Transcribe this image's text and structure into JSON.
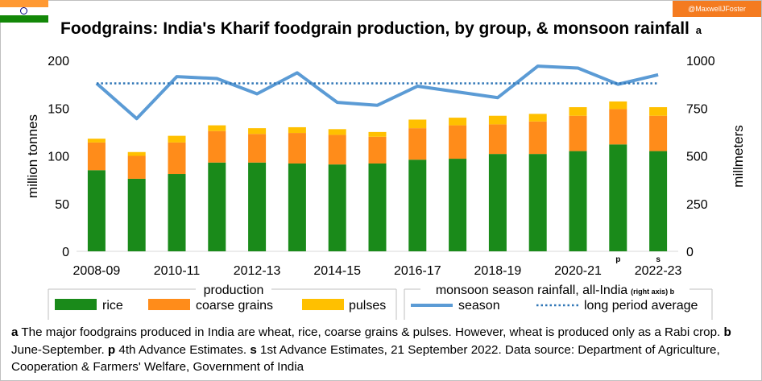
{
  "credit": "@MaxwellJFoster",
  "title": "Foodgrains: India's Kharif foodgrain production, by group, & monsoon rainfall",
  "title_note": "a",
  "colors": {
    "rice": "#1a8a1a",
    "coarse_grains": "#ff8c1a",
    "pulses": "#ffc000",
    "season": "#5b9bd5",
    "long_period_average": "#2e75b6",
    "credit_bg": "#f47b20",
    "flag_saffron": "#ff9933",
    "flag_green": "#138808",
    "flag_chakra": "#000080"
  },
  "flag_icon": "india-flag-icon",
  "chart_data": {
    "type": "bar",
    "stacked": true,
    "categories": [
      "2008-09",
      "2009-10",
      "2010-11",
      "2011-12",
      "2012-13",
      "2013-14",
      "2014-15",
      "2015-16",
      "2016-17",
      "2017-18",
      "2018-19",
      "2019-20",
      "2020-21",
      "2021-22",
      "2022-23"
    ],
    "x_tick_labels": [
      "2008-09",
      "2010-11",
      "2012-13",
      "2014-15",
      "2016-17",
      "2018-19",
      "2020-21",
      "2022-23"
    ],
    "category_notes": {
      "2021-22": "p",
      "2022-23": "s"
    },
    "series": [
      {
        "name": "rice",
        "axis": "left",
        "values": [
          85,
          76,
          81,
          93,
          93,
          92,
          91,
          92,
          96,
          97,
          102,
          102,
          105,
          112,
          105
        ]
      },
      {
        "name": "coarse grains",
        "axis": "left",
        "values": [
          29,
          24,
          33,
          33,
          30,
          32,
          31,
          28,
          33,
          35,
          31,
          34,
          37,
          37,
          37
        ]
      },
      {
        "name": "pulses",
        "axis": "left",
        "values": [
          4,
          4,
          7,
          6,
          6,
          6,
          6,
          5,
          9,
          8,
          9,
          8,
          9,
          8,
          9
        ]
      }
    ],
    "line_series": [
      {
        "name": "season",
        "axis": "right",
        "style": "solid",
        "values": [
          880,
          695,
          915,
          905,
          825,
          935,
          780,
          765,
          865,
          835,
          805,
          970,
          960,
          875,
          925
        ]
      },
      {
        "name": "long period average",
        "axis": "right",
        "style": "dotted",
        "values": [
          880,
          880,
          880,
          880,
          880,
          880,
          880,
          880,
          880,
          880,
          880,
          880,
          880,
          880,
          880
        ]
      }
    ],
    "ylabel": "million tonnes",
    "ylim": [
      0,
      200
    ],
    "yticks": [
      0,
      50,
      100,
      150,
      200
    ],
    "y2label": "millmeters",
    "y2lim": [
      0,
      1000
    ],
    "y2ticks": [
      0,
      250,
      500,
      750,
      1000
    ],
    "grid": false
  },
  "legend": {
    "production_title": "production",
    "production_items": [
      "rice",
      "coarse grains",
      "pulses"
    ],
    "rainfall_title": "monsoon season rainfall, all-India",
    "rainfall_title_note": "(right axis) b",
    "rainfall_items": [
      "season",
      "long period average"
    ]
  },
  "footnote": {
    "a_key": "a",
    "a_text": " The major foodgrains produced in India are wheat, rice, coarse grains & pulses. However, wheat is produced only as a Rabi crop. ",
    "b_key": "b",
    "b_text": " June-September. ",
    "p_key": "p",
    "p_text": " 4th Advance Estimates. ",
    "s_key": "s",
    "s_text": " 1st Advance Estimates, 21 September 2022. Data source: Department of Agriculture, Cooperation & Farmers' Welfare, Government of India"
  }
}
